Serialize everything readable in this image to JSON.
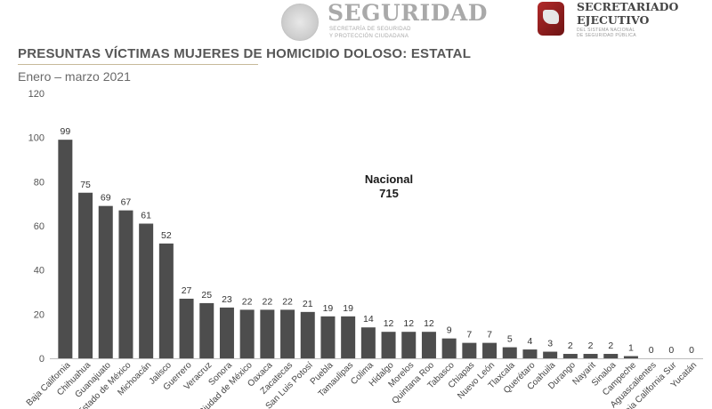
{
  "header": {
    "seguridad_title": "SEGURIDAD",
    "seguridad_sub_1": "SECRETARÍA DE SEGURIDAD",
    "seguridad_sub_2": "Y PROTECCIÓN CIUDADANA",
    "secretariado_title_1": "SECRETARIADO",
    "secretariado_title_2": "EJECUTIVO",
    "secretariado_sub_1": "DEL SISTEMA NACIONAL",
    "secretariado_sub_2": "DE SEGURIDAD PÚBLICA"
  },
  "page": {
    "title": "PRESUNTAS VÍCTIMAS MUJERES DE HOMICIDIO DOLOSO: ESTATAL",
    "subtitle": "Enero – marzo 2021"
  },
  "chart_data": {
    "type": "bar",
    "categories": [
      "Baja California",
      "Chihuahua",
      "Guanajuato",
      "Estado de México",
      "Michoacán",
      "Jalisco",
      "Guerrero",
      "Veracruz",
      "Sonora",
      "Ciudad de México",
      "Oaxaca",
      "Zacatecas",
      "San Luis Potosí",
      "Puebla",
      "Tamaulipas",
      "Colima",
      "Hidalgo",
      "Morelos",
      "Quintana Roo",
      "Tabasco",
      "Chiapas",
      "Nuevo León",
      "Tlaxcala",
      "Querétaro",
      "Coahuila",
      "Durango",
      "Nayarit",
      "Sinaloa",
      "Campeche",
      "Aguascalientes",
      "Baja California Sur",
      "Yucatán"
    ],
    "values": [
      99,
      75,
      69,
      67,
      61,
      52,
      27,
      25,
      23,
      22,
      22,
      22,
      21,
      19,
      19,
      14,
      12,
      12,
      12,
      9,
      7,
      7,
      5,
      4,
      3,
      2,
      2,
      2,
      1,
      0,
      0,
      0
    ],
    "ylim": [
      0,
      120
    ],
    "yticks": [
      0,
      20,
      40,
      60,
      80,
      100,
      120
    ],
    "grid": false,
    "bar_color": "#4d4d4d",
    "annotation": {
      "label": "Nacional",
      "value": "715"
    }
  }
}
